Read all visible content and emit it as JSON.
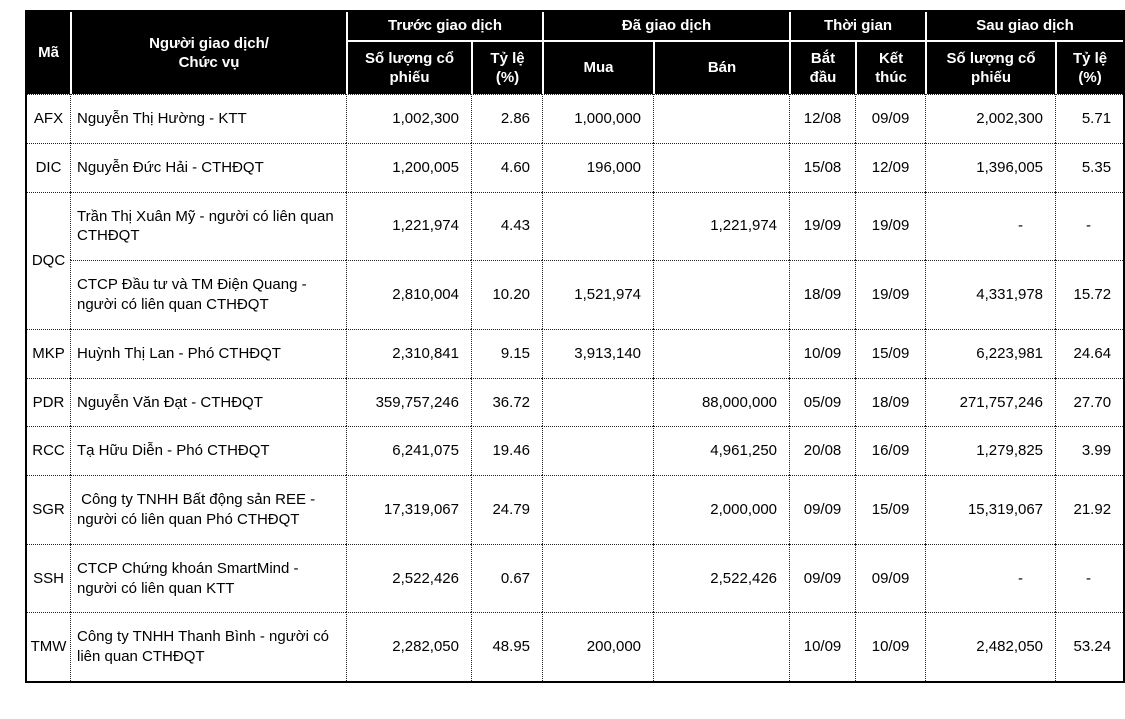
{
  "colors": {
    "header_background": "#000000",
    "header_text": "#ffffff",
    "body_text": "#000000",
    "grid_dotted": "#222222",
    "outer_border": "#000000",
    "page_background": "#ffffff"
  },
  "table": {
    "header": {
      "code_label": "Mã",
      "trader_label": "Người giao dịch/\nChức vụ",
      "groups": [
        {
          "label": "Trước giao dịch",
          "children": [
            "Số lượng cổ phiếu",
            "Tỷ lệ\n(%)"
          ]
        },
        {
          "label": "Đã giao dịch",
          "children": [
            "Mua",
            "Bán"
          ]
        },
        {
          "label": "Thời gian",
          "children": [
            "Bắt\nđầu",
            "Kết\nthúc"
          ]
        },
        {
          "label": "Sau giao dịch",
          "children": [
            "Số lượng cổ phiếu",
            "Tỷ lệ\n(%)"
          ]
        }
      ]
    },
    "groups": [
      {
        "code": "AFX",
        "entries": [
          {
            "trader": "Nguyễn Thị Hường - KTT",
            "before_shares": "1,002,300",
            "before_pct": "2.86",
            "buy": "1,000,000",
            "sell": "",
            "date_start": "12/08",
            "date_end": "09/09",
            "after_shares": "2,002,300",
            "after_pct": "5.71"
          }
        ]
      },
      {
        "code": "DIC",
        "entries": [
          {
            "trader": "Nguyễn Đức Hải - CTHĐQT",
            "before_shares": "1,200,005",
            "before_pct": "4.60",
            "buy": "196,000",
            "sell": "",
            "date_start": "15/08",
            "date_end": "12/09",
            "after_shares": "1,396,005",
            "after_pct": "5.35"
          }
        ]
      },
      {
        "code": "DQC",
        "entries": [
          {
            "trader": "Trần Thị Xuân Mỹ - người có liên quan CTHĐQT",
            "before_shares": "1,221,974",
            "before_pct": "4.43",
            "buy": "",
            "sell": "1,221,974",
            "date_start": "19/09",
            "date_end": "19/09",
            "after_shares": "-",
            "after_pct": "-"
          },
          {
            "trader": "CTCP Đầu tư và TM Điện Quang - người có liên quan CTHĐQT",
            "before_shares": "2,810,004",
            "before_pct": "10.20",
            "buy": "1,521,974",
            "sell": "",
            "date_start": "18/09",
            "date_end": "19/09",
            "after_shares": "4,331,978",
            "after_pct": "15.72"
          }
        ]
      },
      {
        "code": "MKP",
        "entries": [
          {
            "trader": "Huỳnh Thị Lan - Phó CTHĐQT",
            "before_shares": "2,310,841",
            "before_pct": "9.15",
            "buy": "3,913,140",
            "sell": "",
            "date_start": "10/09",
            "date_end": "15/09",
            "after_shares": "6,223,981",
            "after_pct": "24.64"
          }
        ]
      },
      {
        "code": "PDR",
        "entries": [
          {
            "trader": "Nguyễn Văn Đạt - CTHĐQT",
            "before_shares": "359,757,246",
            "before_pct": "36.72",
            "buy": "",
            "sell": "88,000,000",
            "date_start": "05/09",
            "date_end": "18/09",
            "after_shares": "271,757,246",
            "after_pct": "27.70"
          }
        ]
      },
      {
        "code": "RCC",
        "entries": [
          {
            "trader": "Tạ Hữu Diễn - Phó CTHĐQT",
            "before_shares": "6,241,075",
            "before_pct": "19.46",
            "buy": "",
            "sell": "4,961,250",
            "date_start": "20/08",
            "date_end": "16/09",
            "after_shares": "1,279,825",
            "after_pct": "3.99"
          }
        ]
      },
      {
        "code": "SGR",
        "entries": [
          {
            "trader": " Công ty TNHH Bất động sản REE - người có liên quan Phó CTHĐQT",
            "before_shares": "17,319,067",
            "before_pct": "24.79",
            "buy": "",
            "sell": "2,000,000",
            "date_start": "09/09",
            "date_end": "15/09",
            "after_shares": "15,319,067",
            "after_pct": "21.92"
          }
        ]
      },
      {
        "code": "SSH",
        "entries": [
          {
            "trader": "CTCP Chứng khoán SmartMind - người có liên quan KTT",
            "before_shares": "2,522,426",
            "before_pct": "0.67",
            "buy": "",
            "sell": "2,522,426",
            "date_start": "09/09",
            "date_end": "09/09",
            "after_shares": "-",
            "after_pct": "-"
          }
        ]
      },
      {
        "code": "TMW",
        "entries": [
          {
            "trader": "Công ty TNHH Thanh Bình - người có liên quan CTHĐQT",
            "before_shares": "2,282,050",
            "before_pct": "48.95",
            "buy": "200,000",
            "sell": "",
            "date_start": "10/09",
            "date_end": "10/09",
            "after_shares": "2,482,050",
            "after_pct": "53.24"
          }
        ]
      }
    ]
  }
}
